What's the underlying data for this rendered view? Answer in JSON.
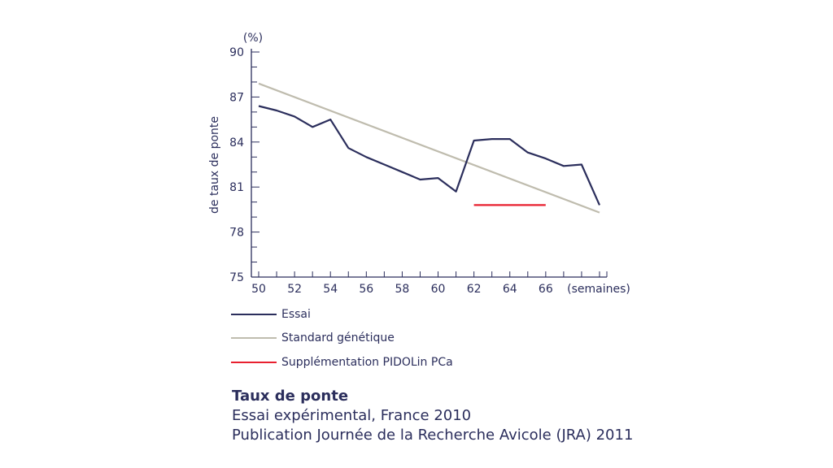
{
  "chart_data": {
    "type": "line",
    "title": "Taux de ponte",
    "ylabel": "de taux de ponte",
    "yunit": "(%)",
    "xunit": "(semaines)",
    "xlim": [
      50,
      69
    ],
    "ylim": [
      75,
      90
    ],
    "xticks": [
      50,
      52,
      54,
      56,
      58,
      60,
      62,
      64,
      66
    ],
    "yticks": [
      75,
      78,
      81,
      84,
      87,
      90
    ],
    "series": [
      {
        "name": "Essai",
        "color": "#2b2e5c",
        "x": [
          50,
          51,
          52,
          53,
          54,
          55,
          56,
          57,
          58,
          59,
          60,
          61,
          62,
          63,
          64,
          65,
          66,
          67,
          68,
          69
        ],
        "y": [
          86.4,
          86.1,
          85.7,
          85.0,
          85.5,
          83.6,
          83.0,
          82.5,
          82.0,
          81.5,
          81.6,
          80.7,
          84.1,
          84.2,
          84.2,
          83.3,
          82.9,
          82.4,
          82.5,
          79.8
        ]
      },
      {
        "name": "Standard génétique",
        "color": "#bfbcae",
        "x": [
          50,
          69
        ],
        "y": [
          87.9,
          79.3
        ]
      },
      {
        "name": "Supplémentation PIDOLin PCa",
        "color": "#e8202f",
        "x": [
          62,
          66
        ],
        "y": [
          79.8,
          79.8
        ]
      }
    ]
  },
  "caption": {
    "title": "Taux de ponte",
    "line1": "Essai expérimental, France 2010",
    "line2": "Publication Journée de la Recherche Avicole (JRA) 2011"
  }
}
